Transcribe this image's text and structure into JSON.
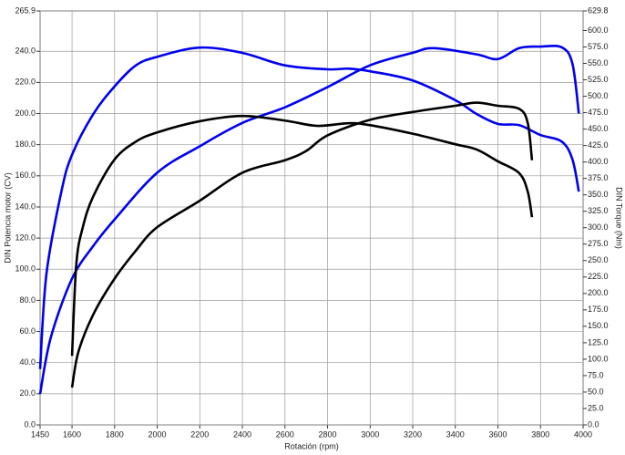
{
  "chart_data": {
    "type": "line",
    "x_label": "Rotación (rpm)",
    "y_label": "DIN Potencia motor (CV)",
    "y2_label": "DIN Torque (Nm)",
    "xlim": [
      1450,
      4000
    ],
    "xticks": [
      1450,
      1600,
      1800,
      2000,
      2200,
      2400,
      2600,
      2800,
      3000,
      3200,
      3400,
      3600,
      3800,
      4000
    ],
    "ylim": [
      0,
      265.9
    ],
    "yticks": [
      {
        "value": 0,
        "label": "0.0"
      },
      {
        "value": 20,
        "label": "20.0"
      },
      {
        "value": 40,
        "label": "40.0"
      },
      {
        "value": 60,
        "label": "60.0"
      },
      {
        "value": 80,
        "label": "80.0"
      },
      {
        "value": 100,
        "label": "100.0"
      },
      {
        "value": 120,
        "label": "120.0"
      },
      {
        "value": 140,
        "label": "140.0"
      },
      {
        "value": 160,
        "label": "160.0"
      },
      {
        "value": 180,
        "label": "180.0"
      },
      {
        "value": 200,
        "label": "200.0"
      },
      {
        "value": 220,
        "label": "220.0"
      },
      {
        "value": 240,
        "label": "240.0"
      },
      265.9
    ],
    "y2lim": [
      0,
      629.8
    ],
    "y2ticks": [
      {
        "value": 0,
        "label": "0.0"
      },
      {
        "value": 25,
        "label": "25.0"
      },
      {
        "value": 50,
        "label": "50.0"
      },
      {
        "value": 75,
        "label": "75.0"
      },
      {
        "value": 100,
        "label": "100.0"
      },
      {
        "value": 125,
        "label": "125.0"
      },
      {
        "value": 150,
        "label": "150.0"
      },
      {
        "value": 175,
        "label": "175.0"
      },
      {
        "value": 200,
        "label": "200.0"
      },
      {
        "value": 225,
        "label": "225.0"
      },
      {
        "value": 250,
        "label": "250.0"
      },
      {
        "value": 275,
        "label": "275.0"
      },
      {
        "value": 300,
        "label": "300.0"
      },
      {
        "value": 325,
        "label": "325.0"
      },
      {
        "value": 350,
        "label": "350.0"
      },
      {
        "value": 375,
        "label": "375.0"
      },
      {
        "value": 400,
        "label": "400.0"
      },
      {
        "value": 425,
        "label": "425.0"
      },
      {
        "value": 450,
        "label": "450.0"
      },
      {
        "value": 475,
        "label": "475.0"
      },
      {
        "value": 500,
        "label": "500.0"
      },
      {
        "value": 525,
        "label": "525.0"
      },
      {
        "value": 550,
        "label": "550.0"
      },
      {
        "value": 575,
        "label": "575.0"
      },
      {
        "value": 600,
        "label": "600.0"
      },
      629.8
    ],
    "grid": true,
    "series": [
      {
        "color": "#0000ee",
        "x": [
          1450,
          1500,
          1600,
          1700,
          1800,
          2000,
          2200,
          2400,
          2600,
          2800,
          3000,
          3200,
          3300,
          3500,
          3600,
          3700,
          3800,
          3900,
          3950,
          3980
        ],
        "values": [
          19.9,
          56,
          94,
          115,
          132,
          162,
          179,
          194,
          204,
          217,
          231,
          239,
          242,
          238,
          235,
          242,
          243,
          242.5,
          232,
          200
        ]
      },
      {
        "color": "#0000ee",
        "axis": "y2",
        "x": [
          1450,
          1480,
          1550,
          1600,
          1700,
          1800,
          1900,
          2000,
          2200,
          2400,
          2600,
          2800,
          2900,
          3000,
          3200,
          3400,
          3500,
          3600,
          3700,
          3800,
          3900,
          3950,
          3980
        ],
        "values": [
          85,
          230,
          355,
          411,
          473,
          515,
          547,
          560,
          574,
          566,
          547,
          541,
          542,
          538,
          524,
          494,
          473,
          458,
          456,
          441,
          431,
          404,
          355
        ]
      },
      {
        "color": "#000000",
        "x": [
          1600,
          1630,
          1700,
          1800,
          1900,
          2000,
          2200,
          2400,
          2600,
          2700,
          2800,
          3000,
          3200,
          3400,
          3500,
          3600,
          3700,
          3740,
          3760
        ],
        "values": [
          24,
          47,
          71,
          94,
          112,
          127,
          144,
          162,
          170,
          176,
          186,
          196,
          201,
          205,
          207,
          205,
          203,
          194,
          170
        ]
      },
      {
        "color": "#000000",
        "axis": "y2",
        "x": [
          1600,
          1620,
          1650,
          1700,
          1800,
          1900,
          2000,
          2200,
          2400,
          2600,
          2750,
          2900,
          3000,
          3200,
          3400,
          3500,
          3600,
          3700,
          3740,
          3760
        ],
        "values": [
          105,
          244,
          300,
          348,
          404,
          431,
          445,
          462,
          470,
          463,
          455,
          459,
          456,
          443,
          427,
          419,
          401,
          383,
          355,
          316
        ]
      }
    ]
  }
}
